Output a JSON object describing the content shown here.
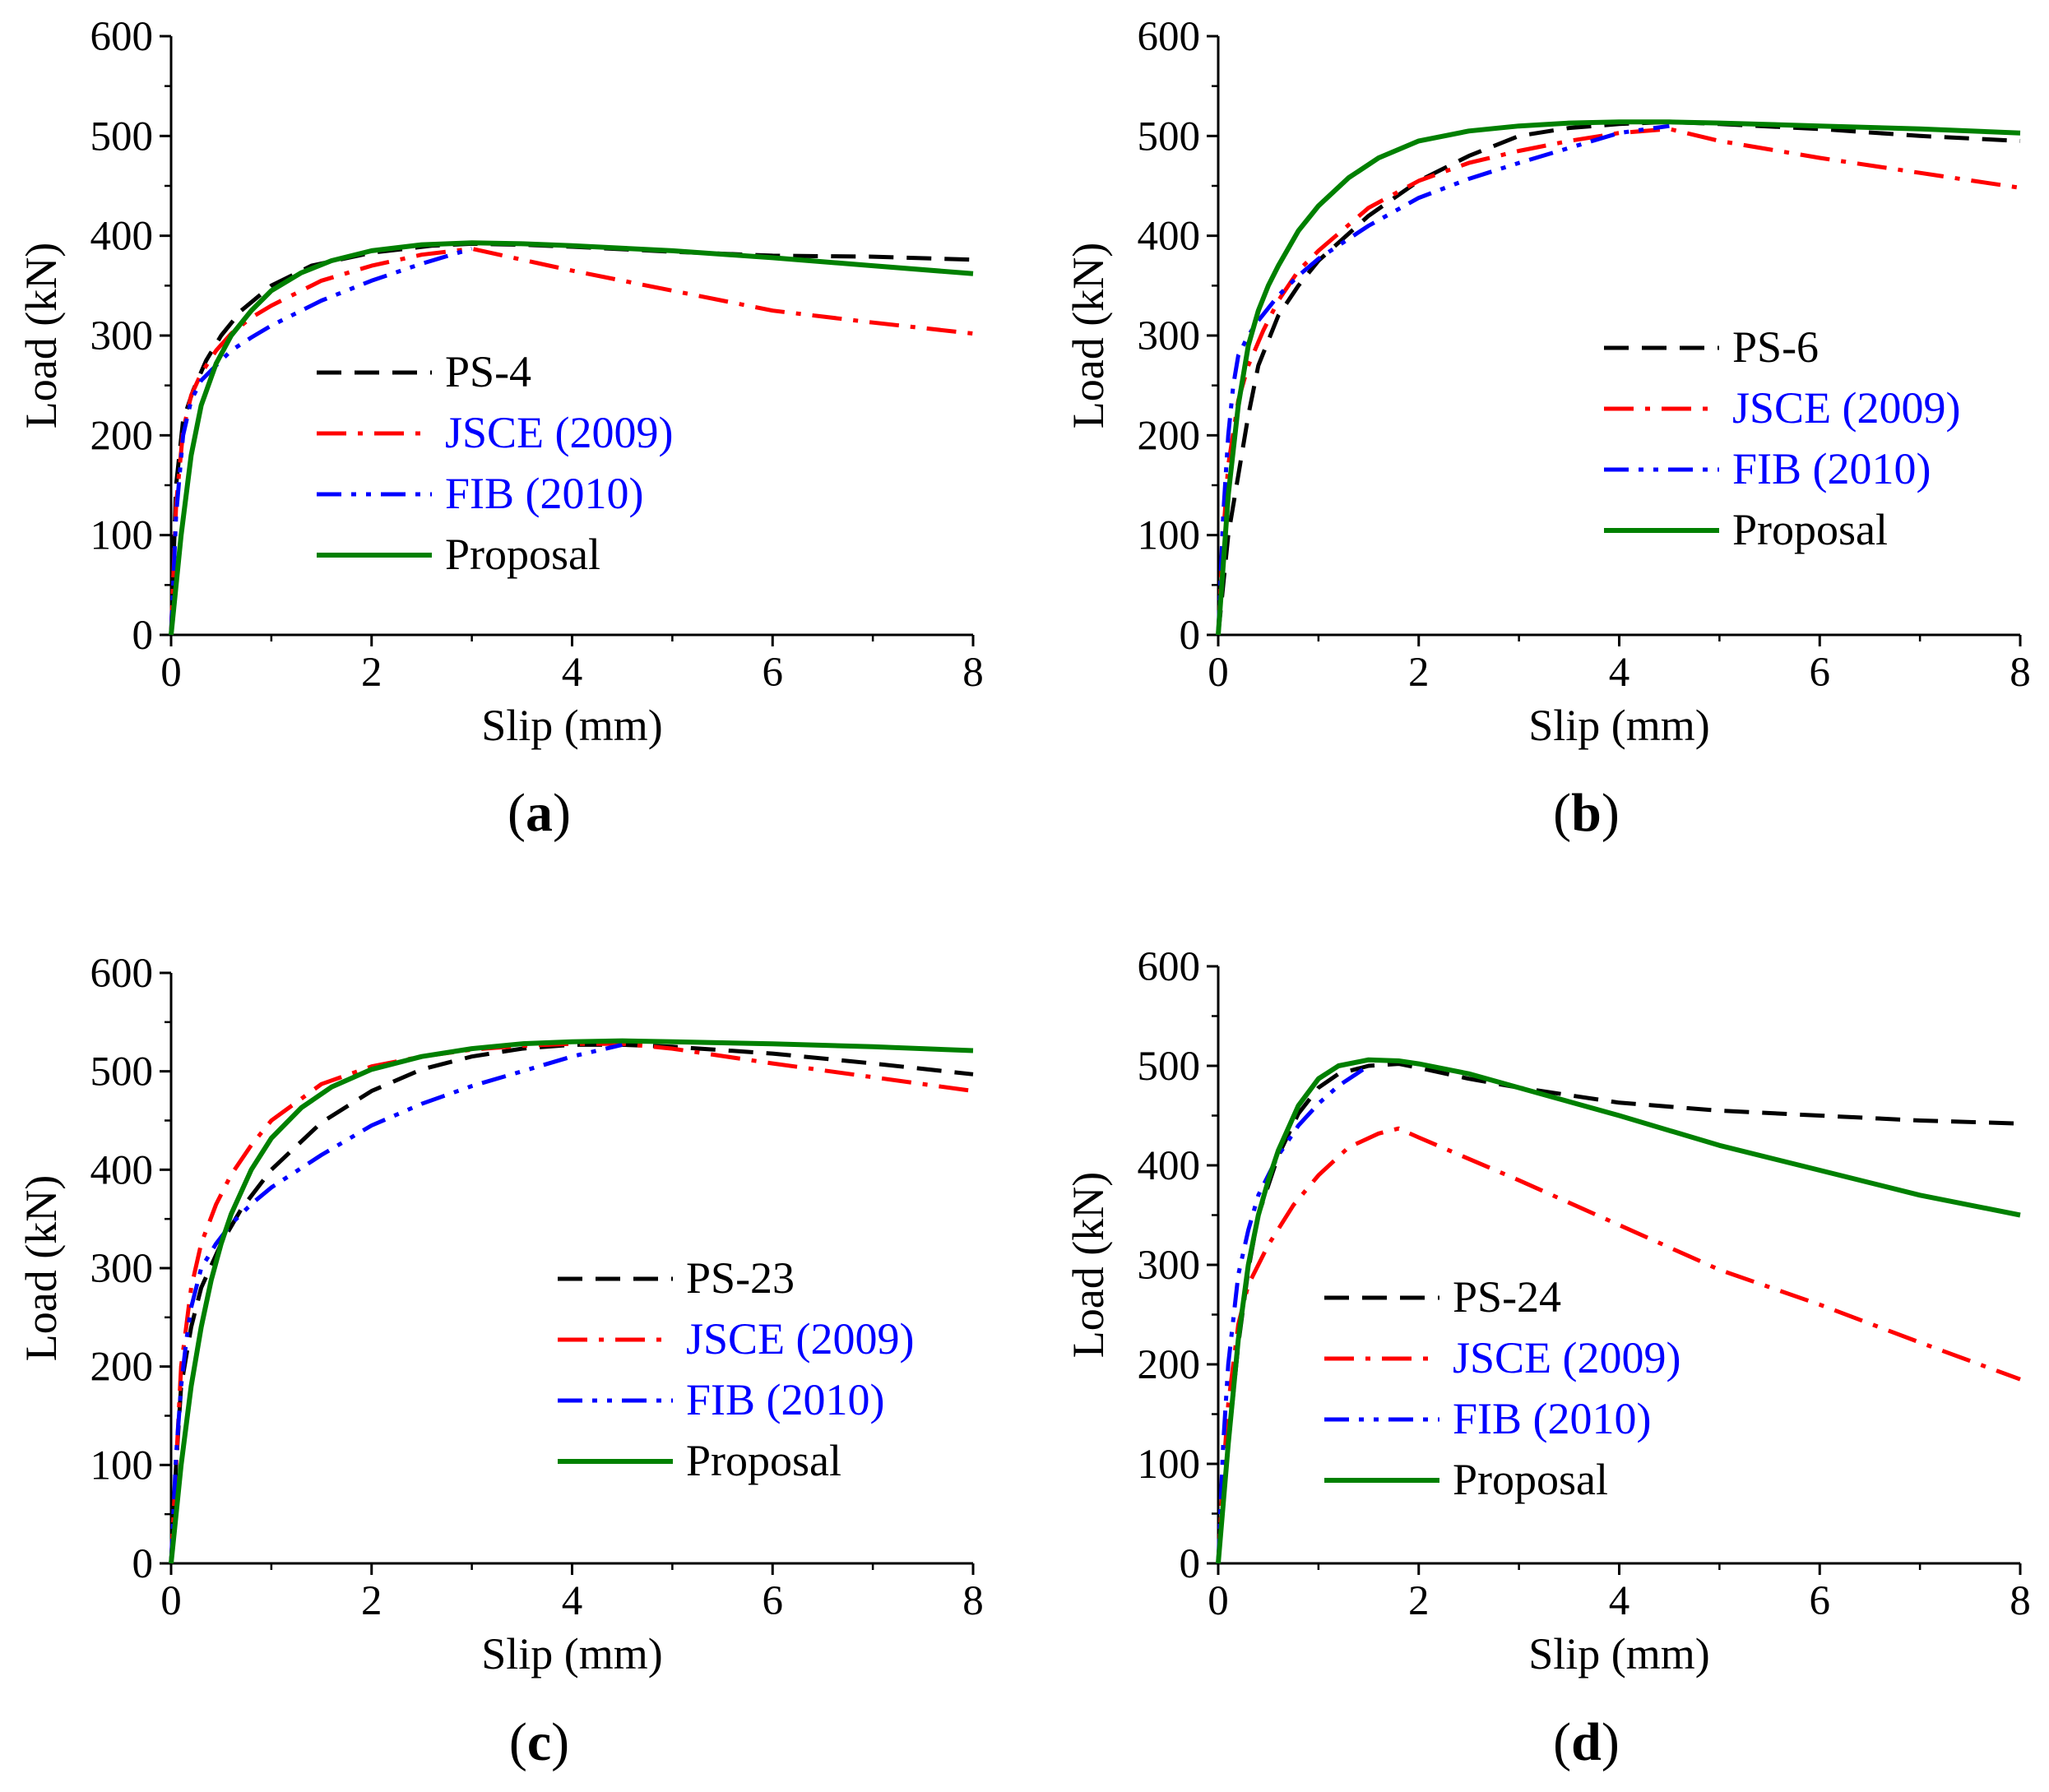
{
  "colors": {
    "exp": "#000000",
    "jsce": "#ff0000",
    "fib": "#0000ff",
    "proposal": "#008000",
    "legend_text_default": "#000000",
    "legend_text_code": "#0000ff"
  },
  "line_styles": {
    "exp": "dashed",
    "jsce": "dash-dot",
    "fib": "dash-dot-dot",
    "proposal": "solid"
  },
  "chart_data": [
    {
      "type": "line",
      "panel_label": "a",
      "xlabel": "Slip (mm)",
      "ylabel": "Load (kN)",
      "xlim": [
        0,
        8
      ],
      "ylim": [
        0,
        600
      ],
      "x_ticks": [
        "0",
        "2",
        "4",
        "6",
        "8"
      ],
      "y_ticks": [
        "0",
        "100",
        "200",
        "300",
        "400",
        "500",
        "600"
      ],
      "legend_position": "center-left",
      "series": [
        {
          "name": "PS-4",
          "style": "exp",
          "x": [
            0,
            0.05,
            0.12,
            0.22,
            0.35,
            0.5,
            0.7,
            1.0,
            1.4,
            2.0,
            2.6,
            3.0,
            3.5,
            4.0,
            5.0,
            6.0,
            7.0,
            8.0
          ],
          "y": [
            0,
            150,
            215,
            245,
            275,
            300,
            325,
            350,
            370,
            383,
            390,
            392,
            391,
            389,
            384,
            380,
            379,
            376
          ]
        },
        {
          "name": "JSCE (2009)",
          "style": "jsce",
          "x": [
            0,
            0.05,
            0.12,
            0.2,
            0.3,
            0.45,
            0.6,
            0.8,
            1.0,
            1.5,
            2.0,
            2.5,
            3.0,
            4.0,
            5.0,
            6.0,
            7.0,
            8.0
          ],
          "y": [
            0,
            130,
            205,
            240,
            262,
            285,
            302,
            318,
            330,
            355,
            370,
            381,
            387,
            365,
            345,
            325,
            313,
            302
          ]
        },
        {
          "name": "FIB (2010)",
          "style": "fib",
          "x": [
            0,
            0.05,
            0.12,
            0.2,
            0.3,
            0.45,
            0.6,
            0.8,
            1.0,
            1.5,
            2.0,
            2.5,
            3.0
          ],
          "y": [
            0,
            120,
            200,
            235,
            255,
            270,
            285,
            298,
            310,
            335,
            355,
            372,
            387
          ]
        },
        {
          "name": "Proposal",
          "style": "proposal",
          "x": [
            0,
            0.1,
            0.2,
            0.3,
            0.45,
            0.6,
            0.8,
            1.0,
            1.3,
            1.6,
            2.0,
            2.5,
            3.0,
            3.5,
            4.0,
            5.0,
            6.0,
            7.0,
            8.0
          ],
          "y": [
            0,
            100,
            180,
            230,
            272,
            300,
            325,
            345,
            363,
            375,
            385,
            391,
            393,
            392,
            390,
            385,
            378,
            370,
            362
          ]
        }
      ]
    },
    {
      "type": "line",
      "panel_label": "b",
      "xlabel": "Slip (mm)",
      "ylabel": "Load (kN)",
      "xlim": [
        0,
        8
      ],
      "ylim": [
        0,
        600
      ],
      "x_ticks": [
        "0",
        "2",
        "4",
        "6",
        "8"
      ],
      "y_ticks": [
        "0",
        "100",
        "200",
        "300",
        "400",
        "500",
        "600"
      ],
      "legend_position": "center-right",
      "series": [
        {
          "name": "PS-6",
          "style": "exp",
          "x": [
            0,
            0.05,
            0.1,
            0.2,
            0.3,
            0.4,
            0.6,
            0.8,
            1.0,
            1.5,
            2.0,
            2.5,
            3.0,
            3.5,
            4.0,
            4.5,
            5.0,
            6.0,
            7.0,
            8.0
          ],
          "y": [
            0,
            50,
            100,
            160,
            220,
            270,
            320,
            350,
            375,
            420,
            455,
            480,
            500,
            508,
            512,
            514,
            512,
            507,
            500,
            495
          ]
        },
        {
          "name": "JSCE (2009)",
          "style": "jsce",
          "x": [
            0,
            0.05,
            0.1,
            0.2,
            0.3,
            0.45,
            0.6,
            0.8,
            1.0,
            1.5,
            2.0,
            2.5,
            3.0,
            3.5,
            4.0,
            4.5,
            5.0,
            6.0,
            7.0,
            8.0
          ],
          "y": [
            0,
            100,
            170,
            235,
            270,
            305,
            335,
            365,
            385,
            428,
            455,
            473,
            485,
            495,
            503,
            507,
            495,
            478,
            463,
            448
          ]
        },
        {
          "name": "FIB (2010)",
          "style": "fib",
          "x": [
            0,
            0.05,
            0.1,
            0.15,
            0.2,
            0.3,
            0.4,
            0.6,
            0.8,
            1.0,
            1.5,
            2.0,
            2.5,
            3.0,
            3.5,
            4.0,
            4.5
          ],
          "y": [
            0,
            120,
            200,
            250,
            280,
            300,
            315,
            340,
            360,
            377,
            410,
            438,
            457,
            473,
            488,
            503,
            510
          ]
        },
        {
          "name": "Proposal",
          "style": "proposal",
          "x": [
            0,
            0.1,
            0.2,
            0.3,
            0.4,
            0.5,
            0.6,
            0.8,
            1.0,
            1.3,
            1.6,
            2.0,
            2.5,
            3.0,
            3.5,
            4.0,
            4.5,
            5.0,
            6.0,
            7.0,
            8.0
          ],
          "y": [
            0,
            140,
            230,
            290,
            325,
            350,
            370,
            405,
            430,
            458,
            478,
            495,
            505,
            510,
            513,
            514,
            514,
            513,
            510,
            507,
            503
          ]
        }
      ]
    },
    {
      "type": "line",
      "panel_label": "c",
      "xlabel": "Slip (mm)",
      "ylabel": "Load (kN)",
      "xlim": [
        0,
        8
      ],
      "ylim": [
        0,
        600
      ],
      "x_ticks": [
        "0",
        "2",
        "4",
        "6",
        "8"
      ],
      "y_ticks": [
        "0",
        "100",
        "200",
        "300",
        "400",
        "500",
        "600"
      ],
      "legend_position": "lower-right",
      "series": [
        {
          "name": "PS-23",
          "style": "exp",
          "x": [
            0,
            0.05,
            0.1,
            0.2,
            0.3,
            0.5,
            0.7,
            1.0,
            1.5,
            2.0,
            2.5,
            3.0,
            3.5,
            4.0,
            4.5,
            5.0,
            6.0,
            7.0,
            8.0
          ],
          "y": [
            0,
            100,
            180,
            240,
            280,
            325,
            360,
            400,
            448,
            480,
            502,
            515,
            523,
            527,
            527,
            525,
            518,
            508,
            497
          ]
        },
        {
          "name": "JSCE (2009)",
          "style": "jsce",
          "x": [
            0,
            0.05,
            0.1,
            0.2,
            0.3,
            0.45,
            0.6,
            0.8,
            1.0,
            1.5,
            2.0,
            2.5,
            3.0,
            3.5,
            4.0,
            4.5,
            5.0,
            6.0,
            7.0,
            8.0
          ],
          "y": [
            0,
            100,
            200,
            280,
            325,
            365,
            395,
            425,
            450,
            487,
            505,
            515,
            522,
            526,
            528,
            528,
            523,
            508,
            494,
            480
          ]
        },
        {
          "name": "FIB (2010)",
          "style": "fib",
          "x": [
            0,
            0.05,
            0.1,
            0.15,
            0.2,
            0.3,
            0.45,
            0.6,
            0.8,
            1.0,
            1.5,
            2.0,
            2.5,
            3.0,
            3.5,
            4.0,
            4.5
          ],
          "y": [
            0,
            110,
            180,
            225,
            260,
            300,
            325,
            345,
            365,
            382,
            415,
            445,
            467,
            485,
            500,
            515,
            527
          ]
        },
        {
          "name": "Proposal",
          "style": "proposal",
          "x": [
            0,
            0.1,
            0.2,
            0.3,
            0.4,
            0.5,
            0.6,
            0.8,
            1.0,
            1.3,
            1.6,
            2.0,
            2.5,
            3.0,
            3.5,
            4.0,
            4.5,
            5.0,
            6.0,
            7.0,
            8.0
          ],
          "y": [
            0,
            100,
            180,
            240,
            288,
            325,
            355,
            400,
            432,
            463,
            484,
            502,
            515,
            523,
            528,
            530,
            531,
            530,
            528,
            525,
            521
          ]
        }
      ]
    },
    {
      "type": "line",
      "panel_label": "d",
      "xlabel": "Slip (mm)",
      "ylabel": "Load (kN)",
      "xlim": [
        0,
        8
      ],
      "ylim": [
        0,
        600
      ],
      "x_ticks": [
        "0",
        "2",
        "4",
        "6",
        "8"
      ],
      "y_ticks": [
        "0",
        "100",
        "200",
        "300",
        "400",
        "500",
        "600"
      ],
      "legend_position": "lower-left",
      "series": [
        {
          "name": "PS-24",
          "style": "exp",
          "x": [
            0,
            0.1,
            0.2,
            0.3,
            0.4,
            0.6,
            0.8,
            1.0,
            1.2,
            1.5,
            1.8,
            2.0,
            2.5,
            3.0,
            4.0,
            5.0,
            6.0,
            7.0,
            8.0
          ],
          "y": [
            0,
            120,
            220,
            295,
            350,
            410,
            452,
            478,
            492,
            500,
            502,
            498,
            487,
            478,
            463,
            455,
            450,
            445,
            442
          ]
        },
        {
          "name": "JSCE (2009)",
          "style": "jsce",
          "x": [
            0,
            0.05,
            0.1,
            0.2,
            0.3,
            0.5,
            0.75,
            1.0,
            1.3,
            1.6,
            1.8,
            2.0,
            3.0,
            4.0,
            5.0,
            6.0,
            7.0,
            8.0
          ],
          "y": [
            0,
            90,
            160,
            240,
            280,
            320,
            360,
            390,
            418,
            432,
            437,
            428,
            385,
            340,
            295,
            260,
            222,
            185
          ]
        },
        {
          "name": "FIB (2010)",
          "style": "fib",
          "x": [
            0,
            0.05,
            0.1,
            0.2,
            0.3,
            0.4,
            0.6,
            0.8,
            1.0,
            1.2,
            1.5
          ],
          "y": [
            0,
            120,
            200,
            290,
            335,
            370,
            410,
            440,
            462,
            480,
            500
          ]
        },
        {
          "name": "Proposal",
          "style": "proposal",
          "x": [
            0,
            0.1,
            0.2,
            0.3,
            0.4,
            0.5,
            0.6,
            0.8,
            1.0,
            1.2,
            1.5,
            1.8,
            2.0,
            2.5,
            3.0,
            4.0,
            5.0,
            6.0,
            7.0,
            8.0
          ],
          "y": [
            0,
            120,
            225,
            300,
            350,
            385,
            415,
            460,
            487,
            500,
            506,
            505,
            502,
            492,
            478,
            450,
            420,
            395,
            370,
            350
          ]
        }
      ]
    }
  ]
}
